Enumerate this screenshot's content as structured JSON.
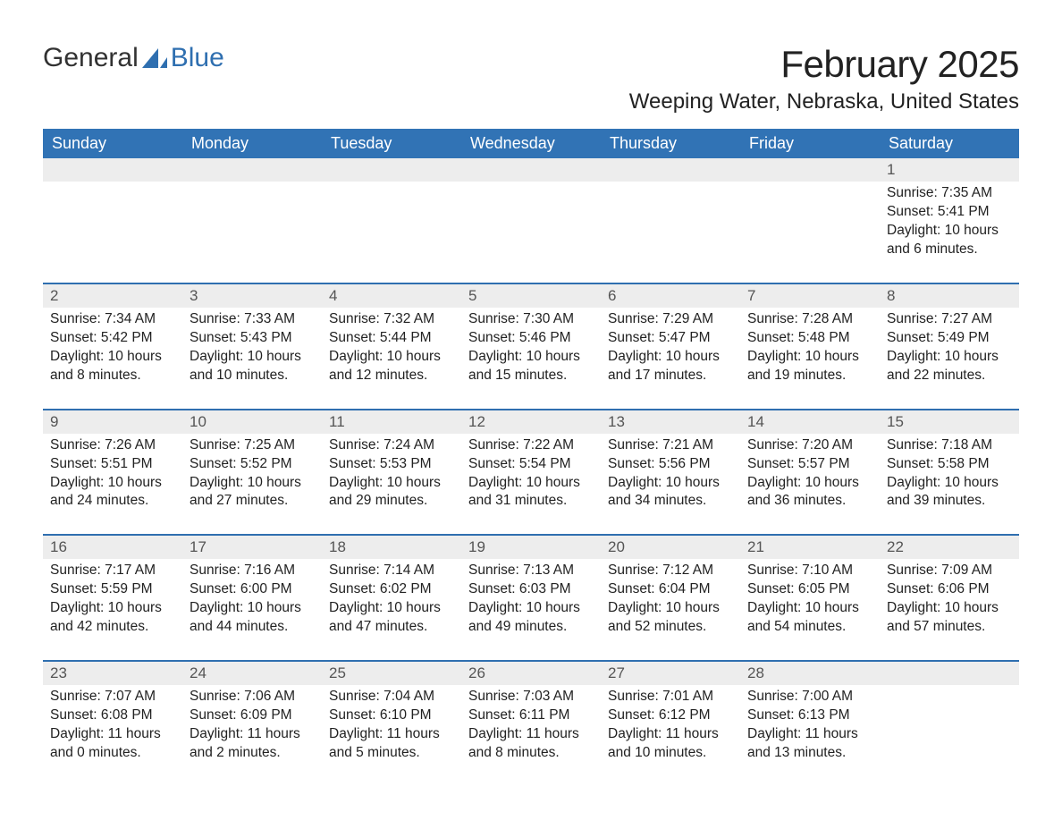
{
  "logo": {
    "text_general": "General",
    "text_blue": "Blue"
  },
  "title": "February 2025",
  "location": "Weeping Water, Nebraska, United States",
  "day_headers": [
    "Sunday",
    "Monday",
    "Tuesday",
    "Wednesday",
    "Thursday",
    "Friday",
    "Saturday"
  ],
  "colors": {
    "header_bg": "#3173b5",
    "header_fg": "#ffffff",
    "daynum_bg": "#ededed",
    "daynum_fg": "#555555",
    "body_fg": "#222222",
    "logo_blue": "#2f6fb0",
    "week_border": "#2f6fb0"
  },
  "typography": {
    "title_fontsize": 42,
    "location_fontsize": 24,
    "header_fontsize": 18,
    "daynum_fontsize": 17,
    "details_fontsize": 15.5
  },
  "labels": {
    "sunrise": "Sunrise",
    "sunset": "Sunset",
    "daylight": "Daylight"
  },
  "weeks": [
    [
      null,
      null,
      null,
      null,
      null,
      null,
      {
        "day": "1",
        "sunrise": "7:35 AM",
        "sunset": "5:41 PM",
        "daylight": "10 hours and 6 minutes."
      }
    ],
    [
      {
        "day": "2",
        "sunrise": "7:34 AM",
        "sunset": "5:42 PM",
        "daylight": "10 hours and 8 minutes."
      },
      {
        "day": "3",
        "sunrise": "7:33 AM",
        "sunset": "5:43 PM",
        "daylight": "10 hours and 10 minutes."
      },
      {
        "day": "4",
        "sunrise": "7:32 AM",
        "sunset": "5:44 PM",
        "daylight": "10 hours and 12 minutes."
      },
      {
        "day": "5",
        "sunrise": "7:30 AM",
        "sunset": "5:46 PM",
        "daylight": "10 hours and 15 minutes."
      },
      {
        "day": "6",
        "sunrise": "7:29 AM",
        "sunset": "5:47 PM",
        "daylight": "10 hours and 17 minutes."
      },
      {
        "day": "7",
        "sunrise": "7:28 AM",
        "sunset": "5:48 PM",
        "daylight": "10 hours and 19 minutes."
      },
      {
        "day": "8",
        "sunrise": "7:27 AM",
        "sunset": "5:49 PM",
        "daylight": "10 hours and 22 minutes."
      }
    ],
    [
      {
        "day": "9",
        "sunrise": "7:26 AM",
        "sunset": "5:51 PM",
        "daylight": "10 hours and 24 minutes."
      },
      {
        "day": "10",
        "sunrise": "7:25 AM",
        "sunset": "5:52 PM",
        "daylight": "10 hours and 27 minutes."
      },
      {
        "day": "11",
        "sunrise": "7:24 AM",
        "sunset": "5:53 PM",
        "daylight": "10 hours and 29 minutes."
      },
      {
        "day": "12",
        "sunrise": "7:22 AM",
        "sunset": "5:54 PM",
        "daylight": "10 hours and 31 minutes."
      },
      {
        "day": "13",
        "sunrise": "7:21 AM",
        "sunset": "5:56 PM",
        "daylight": "10 hours and 34 minutes."
      },
      {
        "day": "14",
        "sunrise": "7:20 AM",
        "sunset": "5:57 PM",
        "daylight": "10 hours and 36 minutes."
      },
      {
        "day": "15",
        "sunrise": "7:18 AM",
        "sunset": "5:58 PM",
        "daylight": "10 hours and 39 minutes."
      }
    ],
    [
      {
        "day": "16",
        "sunrise": "7:17 AM",
        "sunset": "5:59 PM",
        "daylight": "10 hours and 42 minutes."
      },
      {
        "day": "17",
        "sunrise": "7:16 AM",
        "sunset": "6:00 PM",
        "daylight": "10 hours and 44 minutes."
      },
      {
        "day": "18",
        "sunrise": "7:14 AM",
        "sunset": "6:02 PM",
        "daylight": "10 hours and 47 minutes."
      },
      {
        "day": "19",
        "sunrise": "7:13 AM",
        "sunset": "6:03 PM",
        "daylight": "10 hours and 49 minutes."
      },
      {
        "day": "20",
        "sunrise": "7:12 AM",
        "sunset": "6:04 PM",
        "daylight": "10 hours and 52 minutes."
      },
      {
        "day": "21",
        "sunrise": "7:10 AM",
        "sunset": "6:05 PM",
        "daylight": "10 hours and 54 minutes."
      },
      {
        "day": "22",
        "sunrise": "7:09 AM",
        "sunset": "6:06 PM",
        "daylight": "10 hours and 57 minutes."
      }
    ],
    [
      {
        "day": "23",
        "sunrise": "7:07 AM",
        "sunset": "6:08 PM",
        "daylight": "11 hours and 0 minutes."
      },
      {
        "day": "24",
        "sunrise": "7:06 AM",
        "sunset": "6:09 PM",
        "daylight": "11 hours and 2 minutes."
      },
      {
        "day": "25",
        "sunrise": "7:04 AM",
        "sunset": "6:10 PM",
        "daylight": "11 hours and 5 minutes."
      },
      {
        "day": "26",
        "sunrise": "7:03 AM",
        "sunset": "6:11 PM",
        "daylight": "11 hours and 8 minutes."
      },
      {
        "day": "27",
        "sunrise": "7:01 AM",
        "sunset": "6:12 PM",
        "daylight": "11 hours and 10 minutes."
      },
      {
        "day": "28",
        "sunrise": "7:00 AM",
        "sunset": "6:13 PM",
        "daylight": "11 hours and 13 minutes."
      },
      null
    ]
  ]
}
